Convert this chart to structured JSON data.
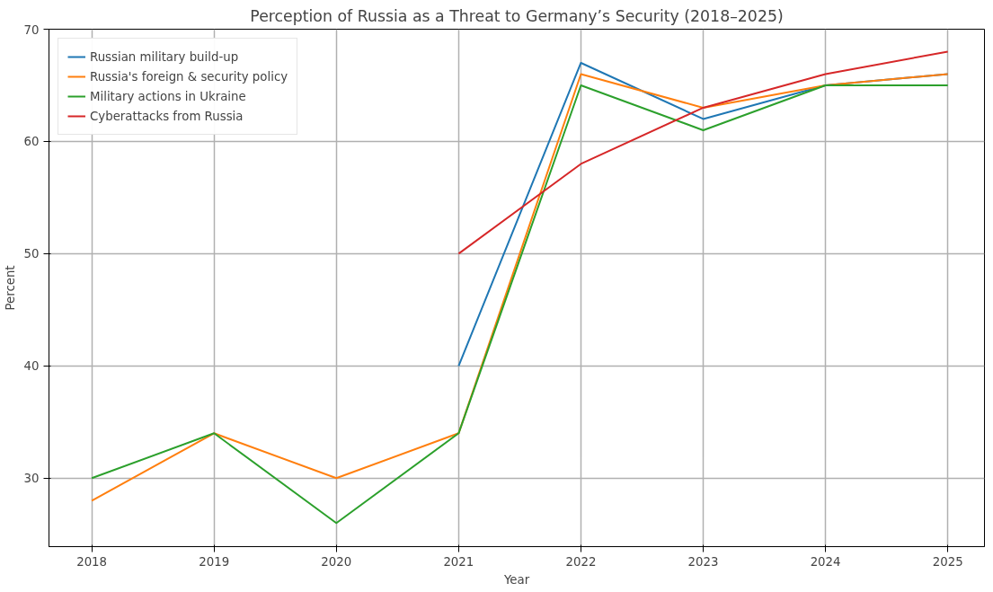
{
  "chart_data": {
    "type": "line",
    "title": "Perception of Russia as a Threat to Germany’s Security (2018–2025)",
    "xlabel": "Year",
    "ylabel": "Percent",
    "x": [
      2018,
      2019,
      2020,
      2021,
      2022,
      2023,
      2024,
      2025
    ],
    "series": [
      {
        "name": "Russian military build-up",
        "color": "#1f77b4",
        "values": [
          null,
          null,
          null,
          40,
          67,
          62,
          65,
          66
        ]
      },
      {
        "name": "Russia's foreign & security policy",
        "color": "#ff7f0e",
        "values": [
          28,
          34,
          30,
          34,
          66,
          63,
          65,
          66
        ]
      },
      {
        "name": "Military actions in Ukraine",
        "color": "#2ca02c",
        "values": [
          30,
          34,
          26,
          34,
          65,
          61,
          65,
          65
        ]
      },
      {
        "name": "Cyberattacks from Russia",
        "color": "#d62728",
        "values": [
          null,
          null,
          null,
          50,
          58,
          63,
          66,
          68
        ]
      }
    ],
    "xlim": [
      2017.65,
      2025.3
    ],
    "ylim": [
      23.9,
      70
    ],
    "xticks": [
      2018,
      2019,
      2020,
      2021,
      2022,
      2023,
      2024,
      2025
    ],
    "yticks": [
      30,
      40,
      50,
      60,
      70
    ],
    "grid": true,
    "legend": "top left",
    "marker": "none",
    "line_style": "solid"
  }
}
